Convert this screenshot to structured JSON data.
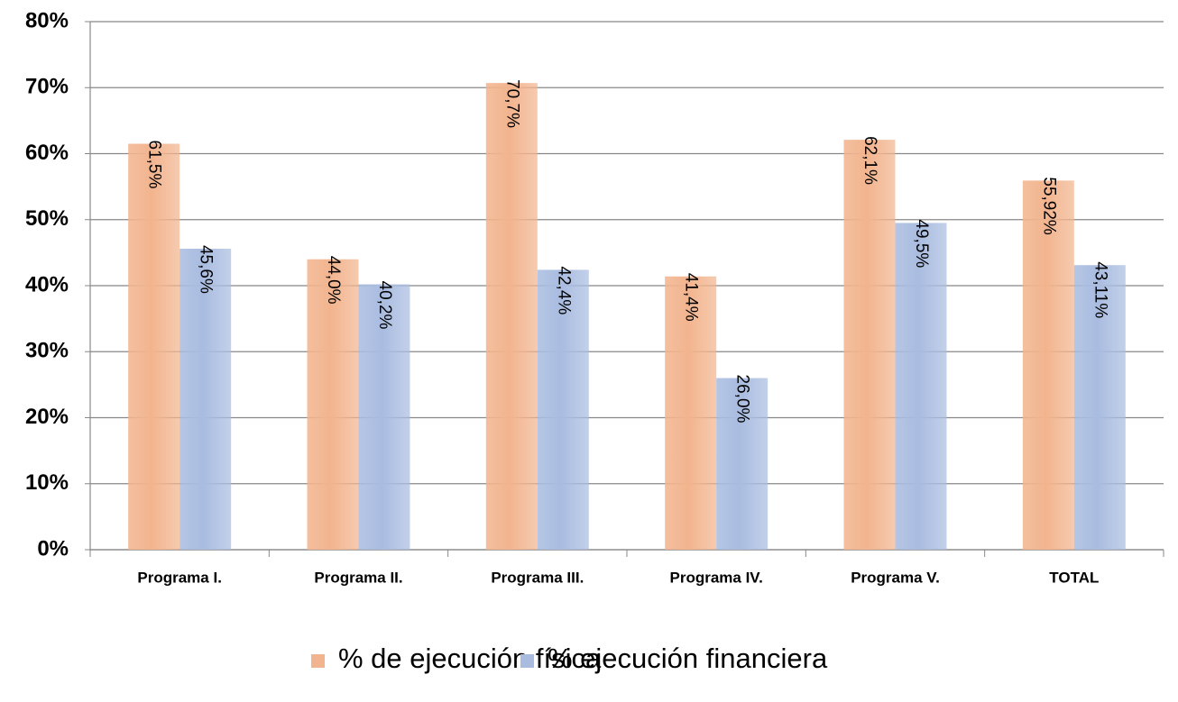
{
  "chart_data": {
    "type": "bar",
    "categories": [
      "Programa I.",
      "Programa II.",
      "Programa III.",
      "Programa IV.",
      "Programa V.",
      "TOTAL"
    ],
    "series": [
      {
        "name": "% de ejecución física",
        "color": "#f2b48e",
        "values": [
          61.5,
          44.0,
          70.7,
          41.4,
          62.1,
          55.92
        ],
        "value_labels": [
          "61,5%",
          "44,0%",
          "70,7%",
          "41,4%",
          "62,1%",
          "55,92%"
        ]
      },
      {
        "name": "% ejecución financiera",
        "color": "#a9bce0",
        "values": [
          45.6,
          40.2,
          42.4,
          26.0,
          49.5,
          43.11
        ],
        "value_labels": [
          "45,6%",
          "40,2%",
          "42,4%",
          "26,0%",
          "49,5%",
          "43,11%"
        ]
      }
    ],
    "ylim": [
      0,
      80
    ],
    "yticks": [
      {
        "value": 0,
        "label": "0%"
      },
      {
        "value": 10,
        "label": "10%"
      },
      {
        "value": 20,
        "label": "20%"
      },
      {
        "value": 30,
        "label": "30%"
      },
      {
        "value": 40,
        "label": "40%"
      },
      {
        "value": 50,
        "label": "50%"
      },
      {
        "value": 60,
        "label": "60%"
      },
      {
        "value": 70,
        "label": "70%"
      },
      {
        "value": 80,
        "label": "80%"
      }
    ],
    "grid": true,
    "legend": "bottom"
  }
}
